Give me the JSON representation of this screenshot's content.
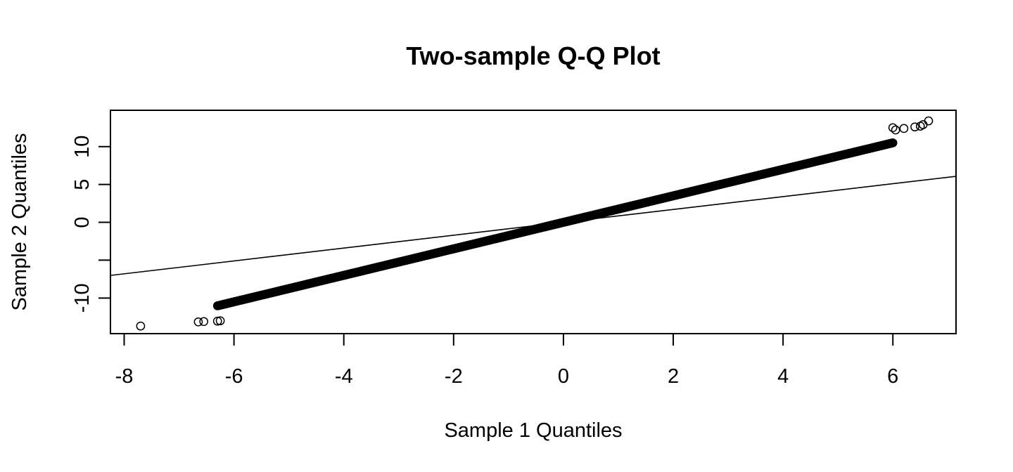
{
  "chart_data": {
    "type": "scatter",
    "title": "Two-sample Q-Q Plot",
    "xlabel": "Sample 1 Quantiles",
    "ylabel": "Sample 2 Quantiles",
    "xlim": [
      -8.25,
      7.15
    ],
    "ylim": [
      -14.7,
      14.8
    ],
    "xticks": [
      -8,
      -6,
      -4,
      -2,
      0,
      2,
      4,
      6
    ],
    "xtick_labels": [
      "-8",
      "-6",
      "-4",
      "-2",
      "0",
      "2",
      "4",
      "6"
    ],
    "yticks": [
      -10,
      -5,
      0,
      5,
      10
    ],
    "ytick_labels": [
      "-10",
      "",
      "0",
      "5",
      "10"
    ],
    "grid": false,
    "legend": "none",
    "colors": {
      "points": "#000000",
      "line": "#000000"
    },
    "reference_line": {
      "slope": 0.85,
      "intercept": 0.0
    },
    "points": {
      "description": "Quantile pairs, approximately y = 1.75 x",
      "slope": 1.75,
      "x_min": -6.3,
      "x_max": 6.0,
      "count": 700,
      "outliers": [
        {
          "x": -7.7,
          "y": -13.7
        },
        {
          "x": -6.65,
          "y": -13.15
        },
        {
          "x": -6.55,
          "y": -13.1
        },
        {
          "x": -6.3,
          "y": -13.05
        },
        {
          "x": -6.25,
          "y": -13.0
        },
        {
          "x": 6.0,
          "y": 12.5
        },
        {
          "x": 6.05,
          "y": 12.2
        },
        {
          "x": 6.2,
          "y": 12.4
        },
        {
          "x": 6.4,
          "y": 12.6
        },
        {
          "x": 6.5,
          "y": 12.7
        },
        {
          "x": 6.55,
          "y": 12.9
        },
        {
          "x": 6.65,
          "y": 13.4
        }
      ]
    }
  }
}
